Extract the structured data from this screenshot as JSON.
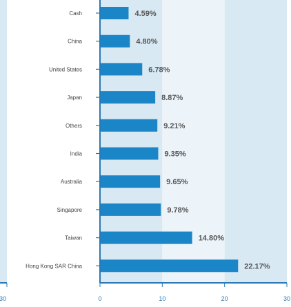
{
  "chart_data": {
    "type": "bar",
    "orientation": "horizontal",
    "categories": [
      "Cash",
      "China",
      "United States",
      "Japan",
      "Others",
      "India",
      "Australia",
      "Singapore",
      "Taiwan",
      "Hong Kong SAR China"
    ],
    "values": [
      4.59,
      4.8,
      6.78,
      8.87,
      9.21,
      9.35,
      9.65,
      9.78,
      14.8,
      22.17
    ],
    "value_labels": [
      "4.59%",
      "4.80%",
      "6.78%",
      "8.87%",
      "9.21%",
      "9.35%",
      "9.65%",
      "9.78%",
      "14.80%",
      "22.17%"
    ],
    "xlim": [
      0,
      30
    ],
    "x_ticks": [
      0,
      10,
      20,
      30
    ],
    "x_tick_labels": [
      "0",
      "10",
      "20",
      "30"
    ],
    "partial_axis_tick_label": "30",
    "grid": false,
    "background_bands": true,
    "colors": {
      "bar": "#1a86c8",
      "axis": "#2a78b6",
      "band_dark": "#d9e9f4",
      "band_light": "#ecf4fa",
      "category_text": "#444444",
      "value_text": "#555555",
      "tick_text": "#2a78b6"
    }
  }
}
